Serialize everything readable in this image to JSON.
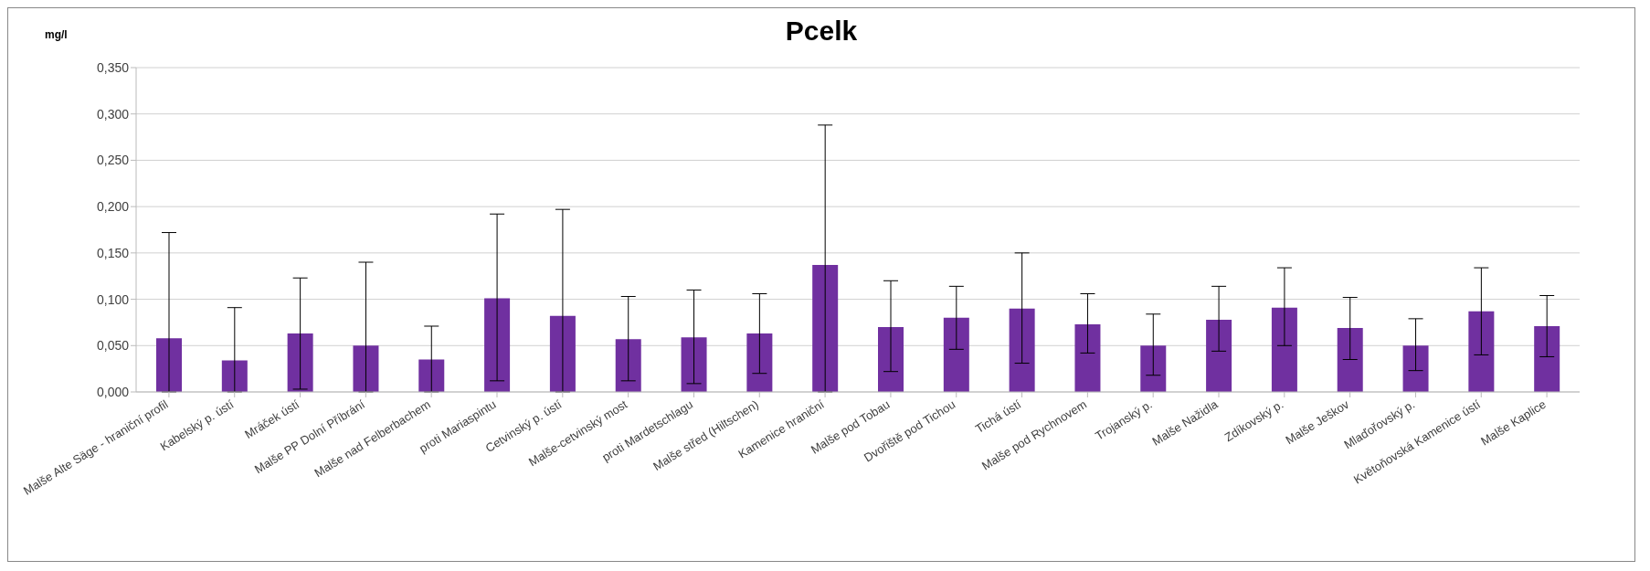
{
  "chart_data": {
    "type": "bar",
    "title": "Pcelk",
    "ylabel": "mg/l",
    "categories": [
      "Malše Alte Säge - hraniční profil",
      "Kabelský p. ústí",
      "Mráček ústí",
      "Malše PP Dolní Příbrání",
      "Malše nad Felberbachem",
      "proti Mariaspintu",
      "Cetvinský p. ústí",
      "Malše-cetvinský most",
      "proti Mardetschlagu",
      "Malše střed (Hiltschen)",
      "Kamenice hraniční",
      "Malše pod Tobau",
      "Dvořiště pod  Tichou",
      "Tichá ústí",
      "Malše pod Rychnovem",
      "Trojanský p.",
      "Malše Nažidla",
      "Zdíkovský p.",
      "Malše Ješkov",
      "Mlaďořovský p.",
      "Květoňovská Kamenice ústí",
      "Malše Kaplice"
    ],
    "values": [
      0.058,
      0.034,
      0.063,
      0.05,
      0.035,
      0.101,
      0.082,
      0.057,
      0.059,
      0.063,
      0.137,
      0.07,
      0.08,
      0.09,
      0.073,
      0.05,
      0.078,
      0.091,
      0.069,
      0.05,
      0.087,
      0.071
    ],
    "errors": [
      [
        0.0,
        0.172
      ],
      [
        0.0,
        0.091
      ],
      [
        0.003,
        0.123
      ],
      [
        0.0,
        0.14
      ],
      [
        0.0,
        0.071
      ],
      [
        0.012,
        0.192
      ],
      [
        0.0,
        0.197
      ],
      [
        0.012,
        0.103
      ],
      [
        0.009,
        0.11
      ],
      [
        0.02,
        0.106
      ],
      [
        0.0,
        0.288
      ],
      [
        0.022,
        0.12
      ],
      [
        0.046,
        0.114
      ],
      [
        0.031,
        0.15
      ],
      [
        0.042,
        0.106
      ],
      [
        0.018,
        0.084
      ],
      [
        0.044,
        0.114
      ],
      [
        0.05,
        0.134
      ],
      [
        0.035,
        0.102
      ],
      [
        0.023,
        0.079
      ],
      [
        0.04,
        0.134
      ],
      [
        0.038,
        0.104
      ]
    ],
    "color": "#7030a0",
    "ylim": [
      0,
      0.35
    ],
    "yticks": [
      {
        "value": 0,
        "label": "0,000"
      },
      {
        "value": 0.05,
        "label": "0,050"
      },
      {
        "value": 0.1,
        "label": "0,100"
      },
      {
        "value": 0.15,
        "label": "0,150"
      },
      {
        "value": 0.2,
        "label": "0,200"
      },
      {
        "value": 0.25,
        "label": "0,250"
      },
      {
        "value": 0.3,
        "label": "0,300"
      },
      {
        "value": 0.35,
        "label": "0,350"
      }
    ],
    "grid": "y",
    "legend": false
  }
}
